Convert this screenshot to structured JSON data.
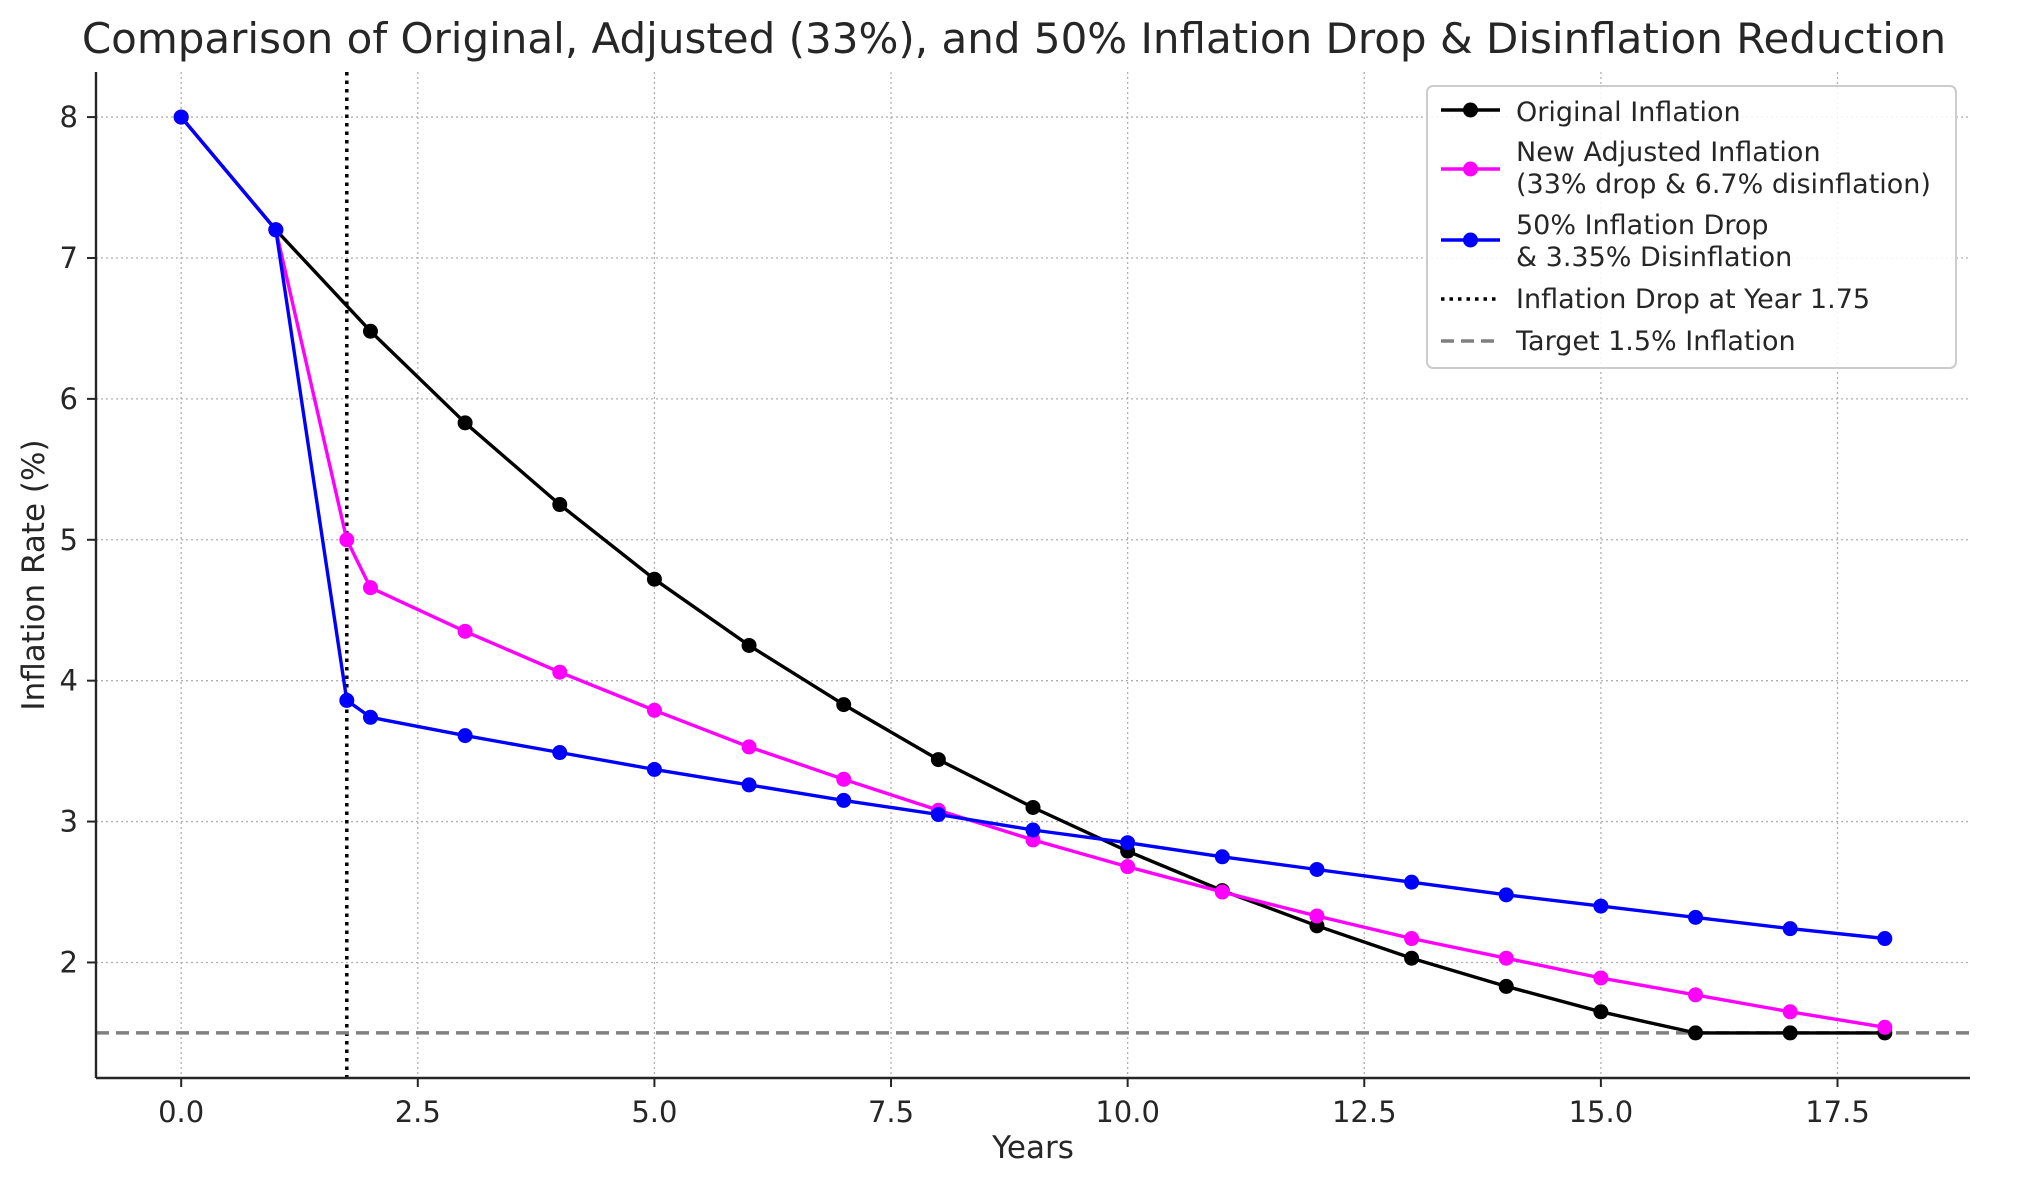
{
  "chart_data": {
    "type": "line",
    "title": "Comparison of Original, Adjusted (33%), and 50% Inflation Drop & Disinflation Reduction",
    "xlabel": "Years",
    "ylabel": "Inflation Rate (%)",
    "xlim": [
      -0.9,
      18.9
    ],
    "ylim": [
      1.18,
      8.32
    ],
    "xticks": [
      0,
      2.5,
      5,
      7.5,
      10,
      12.5,
      15,
      17.5
    ],
    "xtick_labels": [
      "0.0",
      "2.5",
      "5.0",
      "7.5",
      "10.0",
      "12.5",
      "15.0",
      "17.5"
    ],
    "yticks": [
      2,
      3,
      4,
      5,
      6,
      7,
      8
    ],
    "ytick_labels": [
      "2",
      "3",
      "4",
      "5",
      "6",
      "7",
      "8"
    ],
    "grid": true,
    "legend_position": "top-right",
    "series": [
      {
        "name": "Original Inflation",
        "color": "#000000",
        "x": [
          0,
          1,
          2,
          3,
          4,
          5,
          6,
          7,
          8,
          9,
          10,
          11,
          12,
          13,
          14,
          15,
          16,
          17,
          18
        ],
        "y": [
          8.0,
          7.2,
          6.48,
          5.83,
          5.25,
          4.72,
          4.25,
          3.83,
          3.44,
          3.1,
          2.79,
          2.51,
          2.26,
          2.03,
          1.83,
          1.65,
          1.5,
          1.5,
          1.5
        ]
      },
      {
        "name": "New Adjusted Inflation\n(33% drop & 6.7% disinflation)",
        "color": "#ff00ff",
        "x": [
          0,
          1,
          1.75,
          2,
          3,
          4,
          5,
          6,
          7,
          8,
          9,
          10,
          11,
          12,
          13,
          14,
          15,
          16,
          17,
          18
        ],
        "y": [
          8.0,
          7.2,
          5.0,
          4.66,
          4.35,
          4.06,
          3.79,
          3.53,
          3.3,
          3.08,
          2.87,
          2.68,
          2.5,
          2.33,
          2.17,
          2.03,
          1.89,
          1.77,
          1.65,
          1.54
        ]
      },
      {
        "name": "50% Inflation Drop\n& 3.35% Disinflation",
        "color": "#0000ff",
        "x": [
          0,
          1,
          1.75,
          2,
          3,
          4,
          5,
          6,
          7,
          8,
          9,
          10,
          11,
          12,
          13,
          14,
          15,
          16,
          17,
          18
        ],
        "y": [
          8.0,
          7.2,
          3.86,
          3.74,
          3.61,
          3.49,
          3.37,
          3.26,
          3.15,
          3.05,
          2.94,
          2.85,
          2.75,
          2.66,
          2.57,
          2.48,
          2.4,
          2.32,
          2.24,
          2.17
        ]
      }
    ],
    "reference_lines": [
      {
        "name": "Inflation Drop at Year 1.75",
        "orientation": "vertical",
        "value": 1.75,
        "style": "dotted",
        "color": "#000000"
      },
      {
        "name": "Target 1.5% Inflation",
        "orientation": "horizontal",
        "value": 1.5,
        "style": "dashed",
        "color": "#808080"
      }
    ]
  }
}
